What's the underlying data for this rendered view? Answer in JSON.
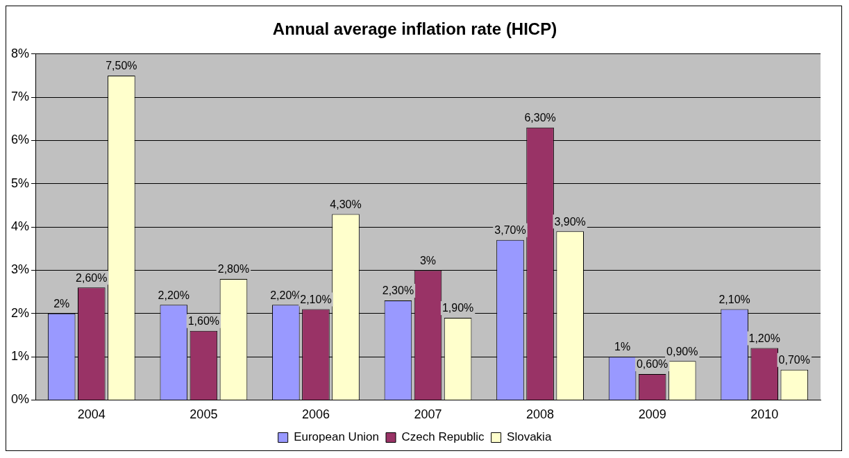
{
  "chart_data": {
    "type": "bar",
    "title": "Annual average inflation rate (HICP)",
    "categories": [
      "2004",
      "2005",
      "2006",
      "2007",
      "2008",
      "2009",
      "2010"
    ],
    "series": [
      {
        "name": "European Union",
        "color": "#9999ff",
        "values": [
          2,
          2.2,
          2.2,
          2.3,
          3.7,
          1,
          2.1
        ],
        "value_labels": [
          "2%",
          "2,20%",
          "2,20%",
          "2,30%",
          "3,70%",
          "1%",
          "2,10%"
        ]
      },
      {
        "name": "Czech Republic",
        "color": "#993366",
        "values": [
          2.6,
          1.6,
          2.1,
          3,
          6.3,
          0.6,
          1.2
        ],
        "value_labels": [
          "2,60%",
          "1,60%",
          "2,10%",
          "3%",
          "6,30%",
          "0,60%",
          "1,20%"
        ]
      },
      {
        "name": "Slovakia",
        "color": "#ffffcc",
        "values": [
          7.5,
          2.8,
          4.3,
          1.9,
          3.9,
          0.9,
          0.7
        ],
        "value_labels": [
          "7,50%",
          "2,80%",
          "4,30%",
          "1,90%",
          "3,90%",
          "0,90%",
          "0,70%"
        ]
      }
    ],
    "ylim": [
      0,
      8
    ],
    "yticks": [
      {
        "value": 0,
        "label": "0%"
      },
      {
        "value": 1,
        "label": "1%"
      },
      {
        "value": 2,
        "label": "2%"
      },
      {
        "value": 3,
        "label": "3%"
      },
      {
        "value": 4,
        "label": "4%"
      },
      {
        "value": 5,
        "label": "5%"
      },
      {
        "value": 6,
        "label": "6%"
      },
      {
        "value": 7,
        "label": "7%"
      },
      {
        "value": 8,
        "label": "8%"
      }
    ],
    "grid": "y",
    "legend": "bottom"
  }
}
